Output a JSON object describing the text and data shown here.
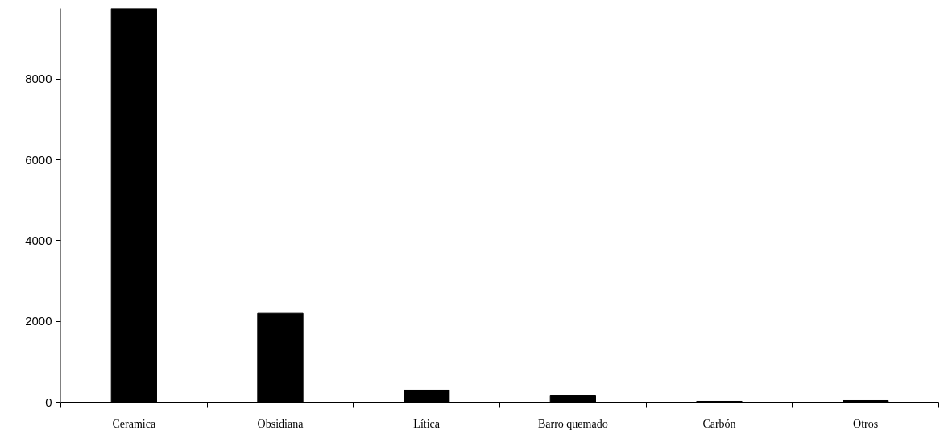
{
  "chart_data": {
    "type": "bar",
    "categories": [
      "Ceramica",
      "Obsidiana",
      "Lítica",
      "Barro quemado",
      "Carbón",
      "Otros"
    ],
    "values": [
      9750,
      2200,
      300,
      160,
      20,
      40
    ],
    "color": "#000000",
    "ylim": [
      0,
      9750
    ],
    "yticks": [
      0,
      2000,
      4000,
      6000,
      8000
    ],
    "grid": false
  }
}
